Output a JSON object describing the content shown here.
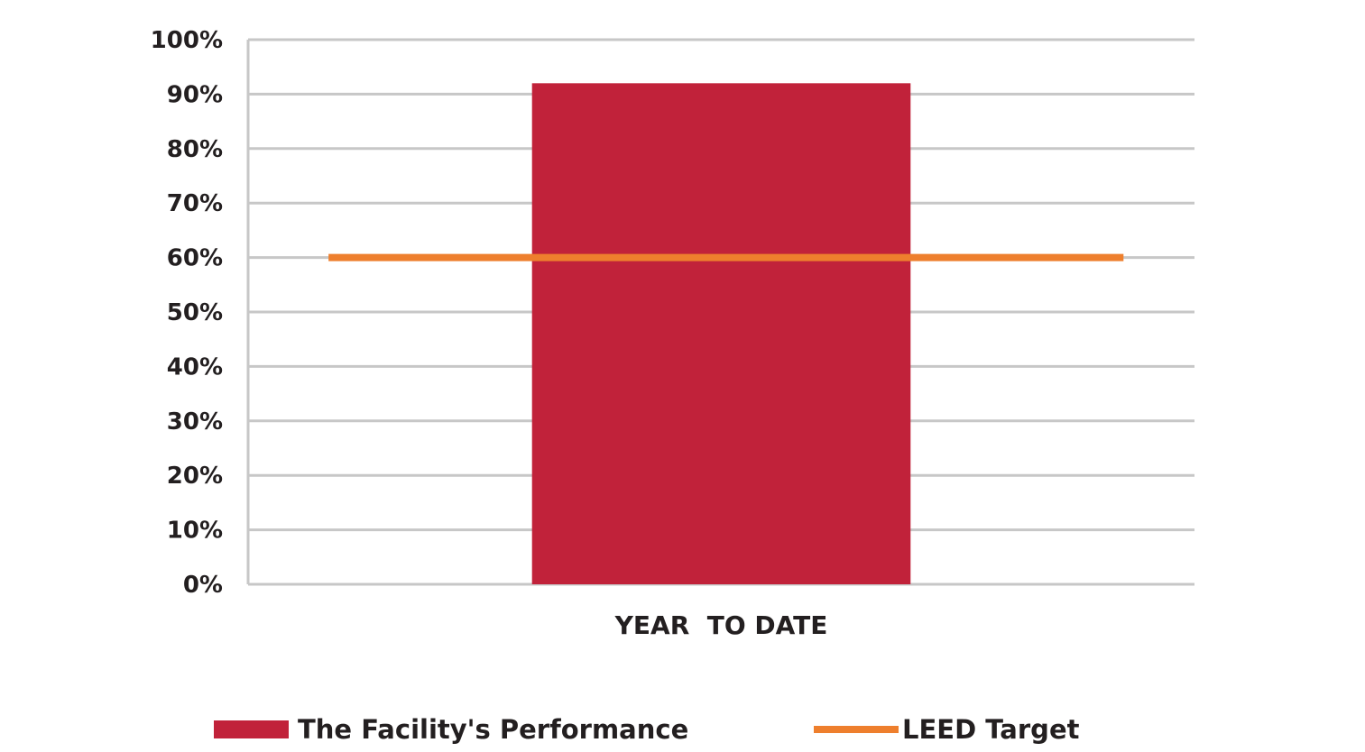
{
  "chart_data": {
    "type": "bar",
    "categories": [
      "YEAR  TO DATE"
    ],
    "series": [
      {
        "name": "The Facility's Performance",
        "kind": "bar",
        "values": [
          92
        ],
        "color": "#c1223a"
      },
      {
        "name": "LEED Target",
        "kind": "line",
        "values": [
          60
        ],
        "color": "#ee7f2d"
      }
    ],
    "y_ticks": [
      "0%",
      "10%",
      "20%",
      "30%",
      "40%",
      "50%",
      "60%",
      "70%",
      "80%",
      "90%",
      "100%"
    ],
    "ylim": [
      0,
      100
    ],
    "y_unit": "%",
    "grid": true,
    "gridline_color": "#c7c7c7",
    "legend_position": "bottom",
    "title": "",
    "xlabel": "",
    "ylabel": ""
  }
}
